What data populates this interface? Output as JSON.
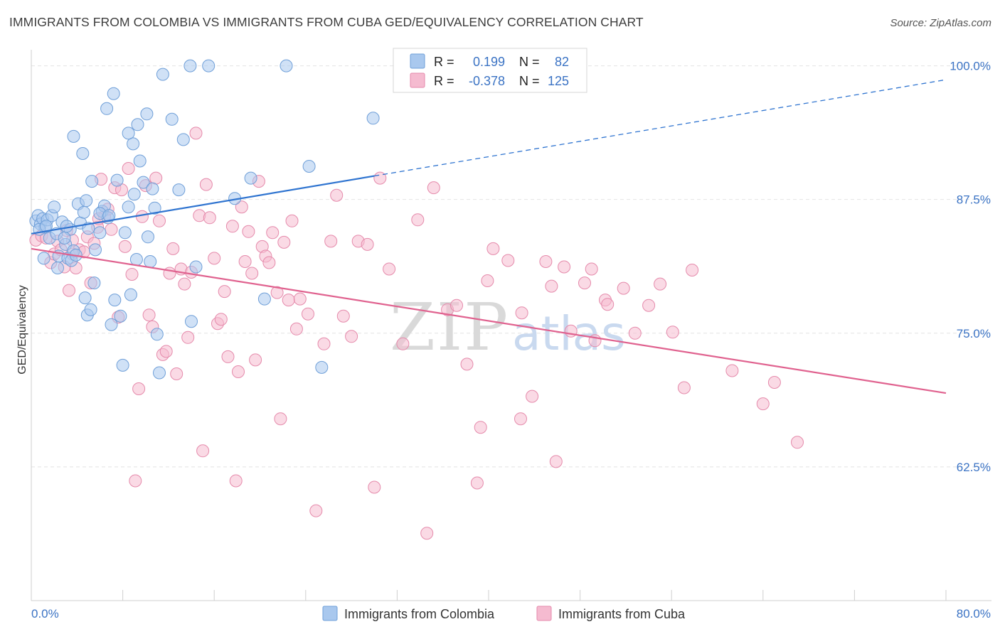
{
  "title": "IMMIGRANTS FROM COLOMBIA VS IMMIGRANTS FROM CUBA GED/EQUIVALENCY CORRELATION CHART",
  "source": "Source: ZipAtlas.com",
  "watermark": {
    "part1": "ZIP",
    "part2": "atlas"
  },
  "legend_box": {
    "rows": [
      {
        "r_label": "R =",
        "r_value": "0.199",
        "n_label": "N =",
        "n_value": "82"
      },
      {
        "r_label": "R =",
        "r_value": "-0.378",
        "n_label": "N =",
        "n_value": "125"
      }
    ]
  },
  "colors": {
    "colombia_fill": "#a9c8ee",
    "colombia_stroke": "#6f9fd8",
    "colombia_line": "#2f74d0",
    "cuba_fill": "#f5bbd0",
    "cuba_stroke": "#e58aab",
    "cuba_line": "#e0628f",
    "tick_text": "#3b73c4",
    "grid": "#e4e4e4"
  },
  "chart_data": {
    "type": "scatter",
    "title": "IMMIGRANTS FROM COLOMBIA VS IMMIGRANTS FROM CUBA GED/EQUIVALENCY CORRELATION CHART",
    "xlabel": "",
    "ylabel": "GED/Equivalency",
    "xlim": [
      0,
      80
    ],
    "ylim": [
      50,
      101.5
    ],
    "x_tick_labels": [
      "0.0%",
      "80.0%"
    ],
    "y_ticks": [
      62.5,
      75.0,
      87.5,
      100.0
    ],
    "y_tick_labels": [
      "62.5%",
      "75.0%",
      "87.5%",
      "100.0%"
    ],
    "grid": true,
    "legend_position": "bottom-center",
    "series": [
      {
        "name": "Immigrants from Colombia",
        "r": 0.199,
        "n": 82,
        "trend": {
          "x": [
            0,
            30
          ],
          "y": [
            84.3,
            89.7
          ],
          "extend_to_x": 80,
          "extend_to_y": 98.7
        },
        "points": [
          [
            0.4,
            85.5
          ],
          [
            0.6,
            86.0
          ],
          [
            0.8,
            85.2
          ],
          [
            1.0,
            85.7
          ],
          [
            1.2,
            84.9
          ],
          [
            1.4,
            85.6
          ],
          [
            1.6,
            83.9
          ],
          [
            1.8,
            86.0
          ],
          [
            0.7,
            84.7
          ],
          [
            1.1,
            82.0
          ],
          [
            2.0,
            86.8
          ],
          [
            2.2,
            84.3
          ],
          [
            2.4,
            82.2
          ],
          [
            2.7,
            85.4
          ],
          [
            3.0,
            83.3
          ],
          [
            3.2,
            82.0
          ],
          [
            3.4,
            84.7
          ],
          [
            3.5,
            81.8
          ],
          [
            3.7,
            82.7
          ],
          [
            3.9,
            82.3
          ],
          [
            4.1,
            87.1
          ],
          [
            4.3,
            85.3
          ],
          [
            4.6,
            86.3
          ],
          [
            4.8,
            87.4
          ],
          [
            5.0,
            84.8
          ],
          [
            5.3,
            89.2
          ],
          [
            5.6,
            82.8
          ],
          [
            6.0,
            84.4
          ],
          [
            6.2,
            86.4
          ],
          [
            6.4,
            86.9
          ],
          [
            6.7,
            85.8
          ],
          [
            7.0,
            75.8
          ],
          [
            7.3,
            78.1
          ],
          [
            7.5,
            89.3
          ],
          [
            7.8,
            76.6
          ],
          [
            8.0,
            72.0
          ],
          [
            8.2,
            84.4
          ],
          [
            8.5,
            86.8
          ],
          [
            8.7,
            78.6
          ],
          [
            8.9,
            92.7
          ],
          [
            9.2,
            81.9
          ],
          [
            9.5,
            91.1
          ],
          [
            9.8,
            89.1
          ],
          [
            10.2,
            84.0
          ],
          [
            10.4,
            81.7
          ],
          [
            10.6,
            88.5
          ],
          [
            10.8,
            86.7
          ],
          [
            11.0,
            74.9
          ],
          [
            11.2,
            71.3
          ],
          [
            12.3,
            95.0
          ],
          [
            12.9,
            88.4
          ],
          [
            13.3,
            93.1
          ],
          [
            14.0,
            76.1
          ],
          [
            14.4,
            81.2
          ],
          [
            17.8,
            87.6
          ],
          [
            19.2,
            89.5
          ],
          [
            22.3,
            100.0
          ],
          [
            13.9,
            100.0
          ],
          [
            15.5,
            100.0
          ],
          [
            11.5,
            99.2
          ],
          [
            5.5,
            79.7
          ],
          [
            4.7,
            78.3
          ],
          [
            4.9,
            76.7
          ],
          [
            5.2,
            77.2
          ],
          [
            9.0,
            88.0
          ],
          [
            10.1,
            95.5
          ],
          [
            9.3,
            94.5
          ],
          [
            8.5,
            93.7
          ],
          [
            6.6,
            96.0
          ],
          [
            7.2,
            97.4
          ],
          [
            4.5,
            91.8
          ],
          [
            3.7,
            93.4
          ],
          [
            20.4,
            78.2
          ],
          [
            25.4,
            71.8
          ],
          [
            24.3,
            90.6
          ],
          [
            29.9,
            95.1
          ],
          [
            2.9,
            83.9
          ],
          [
            3.1,
            85.0
          ],
          [
            1.3,
            85.0
          ],
          [
            6.0,
            86.2
          ],
          [
            2.3,
            81.1
          ],
          [
            6.8,
            86.0
          ]
        ]
      },
      {
        "name": "Immigrants from Cuba",
        "r": -0.378,
        "n": 125,
        "trend": {
          "x": [
            0,
            80
          ],
          "y": [
            82.9,
            69.4
          ]
        },
        "points": [
          [
            0.4,
            83.7
          ],
          [
            0.9,
            84.1
          ],
          [
            1.3,
            83.9
          ],
          [
            1.7,
            81.6
          ],
          [
            2.0,
            82.4
          ],
          [
            2.3,
            83.6
          ],
          [
            2.6,
            82.8
          ],
          [
            2.9,
            81.2
          ],
          [
            3.1,
            84.6
          ],
          [
            3.3,
            79.0
          ],
          [
            3.6,
            83.7
          ],
          [
            3.9,
            81.1
          ],
          [
            4.2,
            82.8
          ],
          [
            4.6,
            82.6
          ],
          [
            4.9,
            84.0
          ],
          [
            5.2,
            79.7
          ],
          [
            5.5,
            83.4
          ],
          [
            5.8,
            84.9
          ],
          [
            6.1,
            89.4
          ],
          [
            6.4,
            85.9
          ],
          [
            6.7,
            86.6
          ],
          [
            7.0,
            84.7
          ],
          [
            7.3,
            88.6
          ],
          [
            7.6,
            76.5
          ],
          [
            7.9,
            88.4
          ],
          [
            8.2,
            83.1
          ],
          [
            8.5,
            90.4
          ],
          [
            8.8,
            80.5
          ],
          [
            9.1,
            61.2
          ],
          [
            9.4,
            69.8
          ],
          [
            9.7,
            85.9
          ],
          [
            10.0,
            88.8
          ],
          [
            10.3,
            76.7
          ],
          [
            10.6,
            75.6
          ],
          [
            10.9,
            89.5
          ],
          [
            11.2,
            85.5
          ],
          [
            11.5,
            73.0
          ],
          [
            11.8,
            73.3
          ],
          [
            12.1,
            80.6
          ],
          [
            12.4,
            82.9
          ],
          [
            12.7,
            71.2
          ],
          [
            13.1,
            81.0
          ],
          [
            13.4,
            79.6
          ],
          [
            13.7,
            74.6
          ],
          [
            14.0,
            80.7
          ],
          [
            14.4,
            93.7
          ],
          [
            14.7,
            86.0
          ],
          [
            15.0,
            64.0
          ],
          [
            15.3,
            88.9
          ],
          [
            15.6,
            85.8
          ],
          [
            16.0,
            82.0
          ],
          [
            16.3,
            75.9
          ],
          [
            16.6,
            76.3
          ],
          [
            16.9,
            78.9
          ],
          [
            17.2,
            72.8
          ],
          [
            17.6,
            85.0
          ],
          [
            17.9,
            61.2
          ],
          [
            18.1,
            71.4
          ],
          [
            18.4,
            86.8
          ],
          [
            18.7,
            81.7
          ],
          [
            19.0,
            84.5
          ],
          [
            19.3,
            80.6
          ],
          [
            19.6,
            72.5
          ],
          [
            19.9,
            89.2
          ],
          [
            20.2,
            83.1
          ],
          [
            20.5,
            82.2
          ],
          [
            20.8,
            81.6
          ],
          [
            21.1,
            84.4
          ],
          [
            21.5,
            78.8
          ],
          [
            21.8,
            67.0
          ],
          [
            22.1,
            83.5
          ],
          [
            22.5,
            78.1
          ],
          [
            22.8,
            85.5
          ],
          [
            23.2,
            75.4
          ],
          [
            23.5,
            78.2
          ],
          [
            24.2,
            76.8
          ],
          [
            24.9,
            58.4
          ],
          [
            25.6,
            74.0
          ],
          [
            26.2,
            83.6
          ],
          [
            26.7,
            87.9
          ],
          [
            27.3,
            76.6
          ],
          [
            28.0,
            74.7
          ],
          [
            28.6,
            83.6
          ],
          [
            29.4,
            83.3
          ],
          [
            30.0,
            60.6
          ],
          [
            30.5,
            89.5
          ],
          [
            31.3,
            81.0
          ],
          [
            32.5,
            74.0
          ],
          [
            33.8,
            85.6
          ],
          [
            34.6,
            56.3
          ],
          [
            35.2,
            88.6
          ],
          [
            36.4,
            77.2
          ],
          [
            37.2,
            77.6
          ],
          [
            38.1,
            72.1
          ],
          [
            39.0,
            61.0
          ],
          [
            39.3,
            66.2
          ],
          [
            39.9,
            79.9
          ],
          [
            40.4,
            82.9
          ],
          [
            41.7,
            81.8
          ],
          [
            42.8,
            67.0
          ],
          [
            42.9,
            76.9
          ],
          [
            43.8,
            69.1
          ],
          [
            45.0,
            81.7
          ],
          [
            45.5,
            79.4
          ],
          [
            45.9,
            63.0
          ],
          [
            46.6,
            81.2
          ],
          [
            47.2,
            75.2
          ],
          [
            48.4,
            79.7
          ],
          [
            49.0,
            81.0
          ],
          [
            49.3,
            74.3
          ],
          [
            50.2,
            78.1
          ],
          [
            50.4,
            77.7
          ],
          [
            51.8,
            79.2
          ],
          [
            52.8,
            75.0
          ],
          [
            54.0,
            77.6
          ],
          [
            55.0,
            79.6
          ],
          [
            56.1,
            75.1
          ],
          [
            57.1,
            69.9
          ],
          [
            57.8,
            80.9
          ],
          [
            61.3,
            71.5
          ],
          [
            64.0,
            68.4
          ],
          [
            65.0,
            70.4
          ],
          [
            67.0,
            64.8
          ],
          [
            5.9,
            85.7
          ],
          [
            3.6,
            82.4
          ]
        ]
      }
    ]
  },
  "bottom_legend": [
    {
      "label": "Immigrants from Colombia"
    },
    {
      "label": "Immigrants from Cuba"
    }
  ]
}
